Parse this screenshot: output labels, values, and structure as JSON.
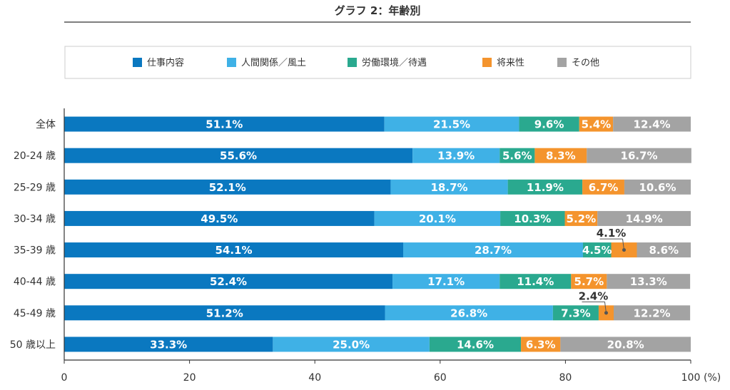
{
  "chart_data": {
    "type": "bar",
    "orientation": "horizontal",
    "stacked": true,
    "title": "グラフ 2：年齢別",
    "categories": [
      "全体",
      "20-24 歳",
      "25-29 歳",
      "30-34 歳",
      "35-39 歳",
      "40-44 歳",
      "45-49 歳",
      "50 歳以上"
    ],
    "series": [
      {
        "name": "仕事内容",
        "color": "#0a78c0",
        "values": [
          51.1,
          55.6,
          52.1,
          49.5,
          54.1,
          52.4,
          51.2,
          33.3
        ]
      },
      {
        "name": "人間関係／風土",
        "color": "#3fb1e6",
        "values": [
          21.5,
          13.9,
          18.7,
          20.1,
          28.7,
          17.1,
          26.8,
          25.0
        ]
      },
      {
        "name": "労働環境／待遇",
        "color": "#2aa98f",
        "values": [
          9.6,
          5.6,
          11.9,
          10.3,
          4.5,
          11.4,
          7.3,
          14.6
        ]
      },
      {
        "name": "将来性",
        "color": "#f4942d",
        "values": [
          5.4,
          8.3,
          6.7,
          5.2,
          4.1,
          5.7,
          2.4,
          6.3
        ]
      },
      {
        "name": "その他",
        "color": "#a3a3a3",
        "values": [
          12.4,
          16.7,
          10.6,
          14.9,
          8.6,
          13.3,
          12.2,
          20.8
        ]
      }
    ],
    "xlim": [
      0,
      100
    ],
    "xticks": [
      0,
      20,
      40,
      60,
      80,
      100
    ],
    "x_unit": "(%)",
    "legend_position": "top",
    "label_suffix": "%",
    "grid": false
  }
}
